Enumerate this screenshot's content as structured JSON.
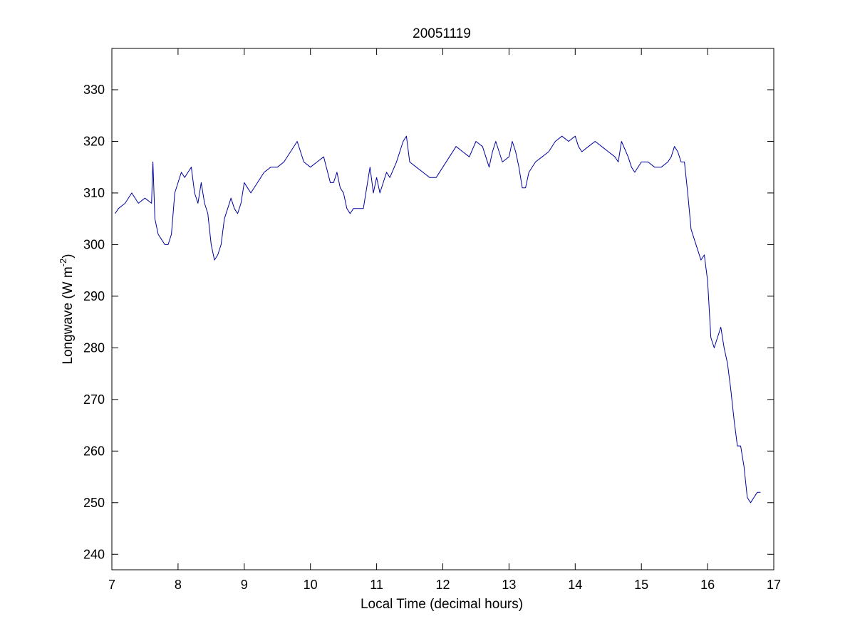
{
  "chart_data": {
    "type": "line",
    "title": "20051119",
    "xlabel": "Local Time (decimal hours)",
    "ylabel": {
      "main": "Longwave (W m",
      "superscript": "-2",
      "close": ")"
    },
    "xlim": [
      7,
      17
    ],
    "ylim": [
      237,
      338
    ],
    "xticks": [
      "7",
      "8",
      "9",
      "10",
      "11",
      "12",
      "13",
      "14",
      "15",
      "16",
      "17"
    ],
    "yticks": [
      "240",
      "250",
      "260",
      "270",
      "280",
      "290",
      "300",
      "310",
      "320",
      "330"
    ],
    "grid": false,
    "legend": "none",
    "series": [
      {
        "color": "#0000a0",
        "x": [
          7.05,
          7.1,
          7.2,
          7.3,
          7.4,
          7.5,
          7.6,
          7.62,
          7.65,
          7.7,
          7.75,
          7.8,
          7.85,
          7.9,
          7.95,
          8.0,
          8.05,
          8.1,
          8.15,
          8.2,
          8.25,
          8.3,
          8.35,
          8.4,
          8.45,
          8.5,
          8.55,
          8.6,
          8.65,
          8.7,
          8.75,
          8.8,
          8.85,
          8.9,
          8.95,
          9.0,
          9.05,
          9.1,
          9.2,
          9.3,
          9.4,
          9.5,
          9.6,
          9.7,
          9.8,
          9.85,
          9.9,
          10.0,
          10.1,
          10.2,
          10.3,
          10.35,
          10.4,
          10.45,
          10.5,
          10.55,
          10.6,
          10.65,
          10.7,
          10.8,
          10.9,
          10.95,
          11.0,
          11.05,
          11.1,
          11.15,
          11.2,
          11.3,
          11.4,
          11.45,
          11.5,
          11.6,
          11.7,
          11.8,
          11.9,
          12.0,
          12.1,
          12.2,
          12.3,
          12.4,
          12.5,
          12.6,
          12.7,
          12.75,
          12.8,
          12.9,
          13.0,
          13.05,
          13.1,
          13.15,
          13.2,
          13.25,
          13.3,
          13.4,
          13.5,
          13.6,
          13.7,
          13.8,
          13.9,
          14.0,
          14.05,
          14.1,
          14.2,
          14.3,
          14.4,
          14.5,
          14.6,
          14.65,
          14.7,
          14.8,
          14.85,
          14.9,
          15.0,
          15.1,
          15.2,
          15.3,
          15.4,
          15.45,
          15.5,
          15.55,
          15.6,
          15.65,
          15.7,
          15.75,
          15.8,
          15.85,
          15.9,
          15.95,
          16.0,
          16.05,
          16.1,
          16.15,
          16.2,
          16.25,
          16.3,
          16.35,
          16.4,
          16.45,
          16.5,
          16.55,
          16.6,
          16.65,
          16.7,
          16.75,
          16.8
        ],
        "y": [
          306,
          307,
          308,
          310,
          308,
          309,
          308,
          316,
          305,
          302,
          301,
          300,
          300,
          302,
          310,
          312,
          314,
          313,
          314,
          315,
          310,
          308,
          312,
          308,
          306,
          300,
          297,
          298,
          300,
          305,
          307,
          309,
          307,
          306,
          308,
          312,
          311,
          310,
          312,
          314,
          315,
          315,
          316,
          318,
          320,
          318,
          316,
          315,
          316,
          317,
          312,
          312,
          314,
          311,
          310,
          307,
          306,
          307,
          307,
          307,
          315,
          310,
          313,
          310,
          312,
          314,
          313,
          316,
          320,
          321,
          316,
          315,
          314,
          313,
          313,
          315,
          317,
          319,
          318,
          317,
          320,
          319,
          315,
          318,
          320,
          316,
          317,
          320,
          318,
          315,
          311,
          311,
          314,
          316,
          317,
          318,
          320,
          321,
          320,
          321,
          319,
          318,
          319,
          320,
          319,
          318,
          317,
          316,
          320,
          317,
          315,
          314,
          316,
          316,
          315,
          315,
          316,
          317,
          319,
          318,
          316,
          316,
          310,
          303,
          301,
          299,
          297,
          298,
          293,
          282,
          280,
          282,
          284,
          280,
          277,
          272,
          266,
          261,
          261,
          257,
          251,
          250,
          251,
          252,
          252
        ]
      }
    ]
  }
}
